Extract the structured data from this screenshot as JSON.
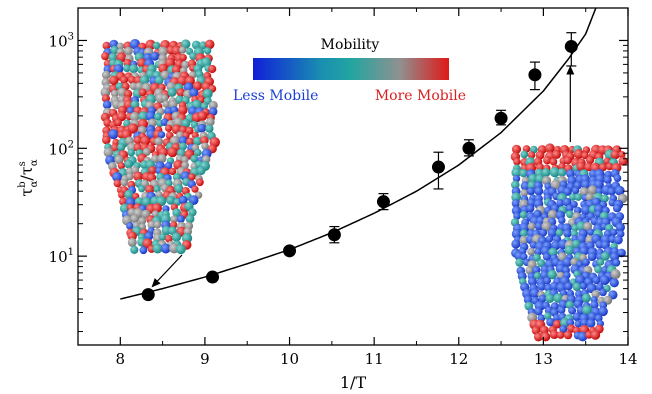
{
  "chart_data": {
    "type": "scatter",
    "xlabel": "1/T",
    "ylabel": {
      "base": "τ",
      "sup1": "b",
      "sub1": "α",
      "slash": "/",
      "base2": "τ",
      "sup2": "s",
      "sub2": "α"
    },
    "xlim": [
      7.5,
      14
    ],
    "ylim": [
      1.5,
      2000
    ],
    "yscale": "log",
    "x_ticks": [
      "8",
      "9",
      "10",
      "11",
      "12",
      "13",
      "14"
    ],
    "y_ticks": [
      {
        "value": 10,
        "base": "10",
        "exp": "1"
      },
      {
        "value": 100,
        "base": "10",
        "exp": "2"
      },
      {
        "value": 1000,
        "base": "10",
        "exp": "3"
      }
    ],
    "grid": false,
    "series": [
      {
        "style": "black-circles-with-error-bars",
        "points": [
          {
            "x": 8.33,
            "y": 4.4,
            "err_low": 0,
            "err_high": 0
          },
          {
            "x": 9.09,
            "y": 6.4,
            "err_low": 0,
            "err_high": 0
          },
          {
            "x": 10.0,
            "y": 11.2,
            "err_low": 0,
            "err_high": 0
          },
          {
            "x": 10.53,
            "y": 15.8,
            "err_low": 2.5,
            "err_high": 3.0
          },
          {
            "x": 11.11,
            "y": 32,
            "err_low": 5,
            "err_high": 6
          },
          {
            "x": 11.76,
            "y": 67,
            "err_low": 25,
            "err_high": 25
          },
          {
            "x": 12.12,
            "y": 100,
            "err_low": 15,
            "err_high": 20
          },
          {
            "x": 12.5,
            "y": 190,
            "err_low": 25,
            "err_high": 35
          },
          {
            "x": 12.9,
            "y": 480,
            "err_low": 130,
            "err_high": 150
          },
          {
            "x": 13.33,
            "y": 880,
            "err_low": 300,
            "err_high": 300
          }
        ]
      },
      {
        "style": "black-line-fit",
        "x": [
          8.0,
          8.5,
          9.0,
          9.5,
          10.0,
          10.5,
          11.0,
          11.5,
          12.0,
          12.5,
          13.0,
          13.3,
          13.5,
          13.62
        ],
        "y": [
          4.0,
          5.0,
          6.4,
          8.5,
          11.5,
          16.5,
          25,
          40,
          70,
          140,
          340,
          680,
          1150,
          2000
        ]
      }
    ],
    "legend": {
      "title": "Mobility",
      "less_label": "Less Mobile",
      "more_label": "More Mobile",
      "gradient_colors": [
        "#1020d8",
        "#1a8fb0",
        "#22a5a0",
        "#909090",
        "#e01818"
      ]
    },
    "annotations": [
      {
        "name": "insert-low-mobility-cluster",
        "points_to": {
          "x": 8.33,
          "y": 4.4
        }
      },
      {
        "name": "insert-high-mobility-cluster",
        "points_to": {
          "x": 13.33,
          "y": 880
        }
      }
    ]
  }
}
